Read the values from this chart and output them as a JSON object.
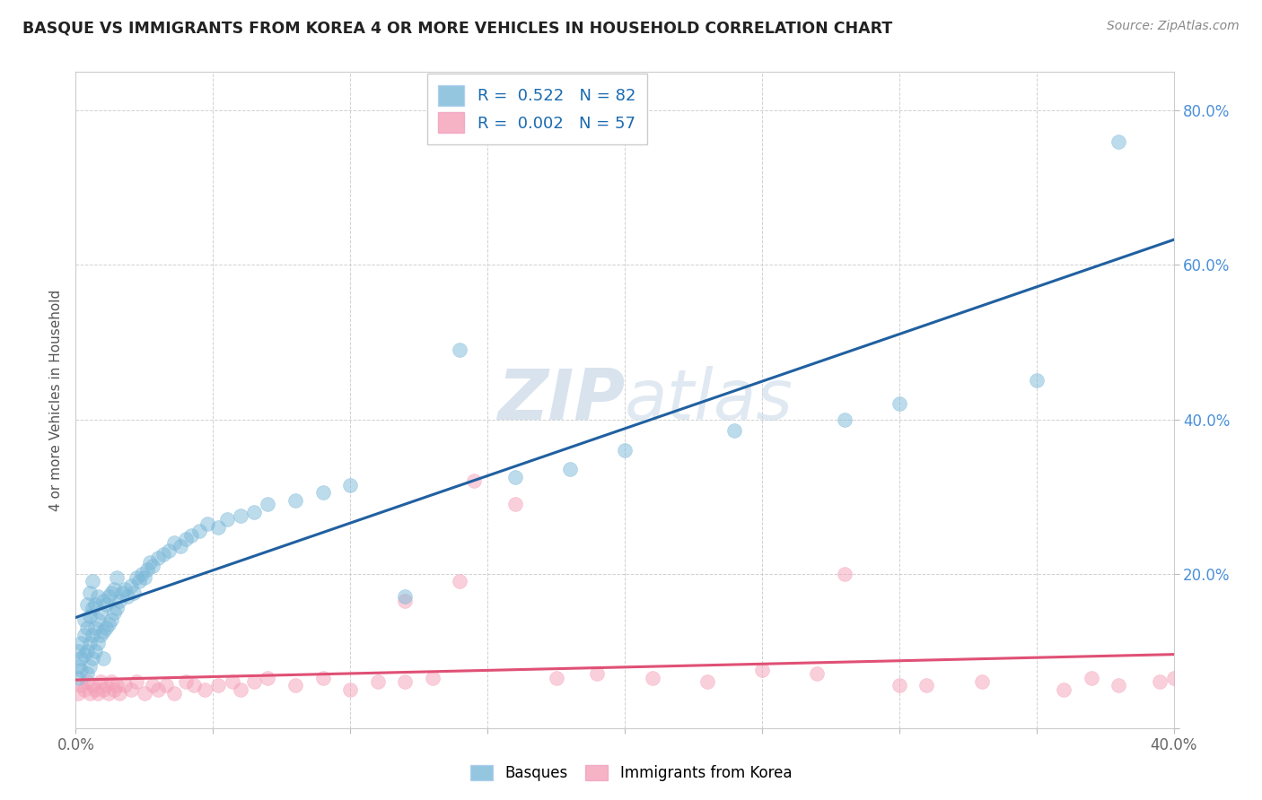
{
  "title": "BASQUE VS IMMIGRANTS FROM KOREA 4 OR MORE VEHICLES IN HOUSEHOLD CORRELATION CHART",
  "source_text": "Source: ZipAtlas.com",
  "ylabel": "4 or more Vehicles in Household",
  "xlim": [
    0.0,
    0.4
  ],
  "ylim": [
    0.0,
    0.85
  ],
  "xticks": [
    0.0,
    0.05,
    0.1,
    0.15,
    0.2,
    0.25,
    0.3,
    0.35,
    0.4
  ],
  "xticklabels": [
    "0.0%",
    "",
    "",
    "",
    "",
    "",
    "",
    "",
    "40.0%"
  ],
  "yticks": [
    0.0,
    0.2,
    0.4,
    0.6,
    0.8
  ],
  "yticklabels": [
    "",
    "20.0%",
    "40.0%",
    "60.0%",
    "80.0%"
  ],
  "basque_color": "#7ab8d9",
  "korea_color": "#f4a0b8",
  "basque_line_color": "#2060a0",
  "korea_line_color": "#e05075",
  "grid_color": "#cccccc",
  "background_color": "#ffffff",
  "watermark_color": "#c8d8e8",
  "basque_x": [
    0.001,
    0.001,
    0.001,
    0.002,
    0.002,
    0.002,
    0.003,
    0.003,
    0.003,
    0.004,
    0.004,
    0.004,
    0.004,
    0.005,
    0.005,
    0.005,
    0.005,
    0.006,
    0.006,
    0.006,
    0.006,
    0.007,
    0.007,
    0.007,
    0.008,
    0.008,
    0.008,
    0.009,
    0.009,
    0.01,
    0.01,
    0.01,
    0.011,
    0.011,
    0.012,
    0.012,
    0.013,
    0.013,
    0.014,
    0.014,
    0.015,
    0.015,
    0.016,
    0.017,
    0.018,
    0.019,
    0.02,
    0.021,
    0.022,
    0.023,
    0.024,
    0.025,
    0.026,
    0.027,
    0.028,
    0.03,
    0.032,
    0.034,
    0.036,
    0.038,
    0.04,
    0.042,
    0.045,
    0.048,
    0.052,
    0.055,
    0.06,
    0.065,
    0.07,
    0.08,
    0.09,
    0.1,
    0.12,
    0.14,
    0.16,
    0.18,
    0.2,
    0.24,
    0.28,
    0.3,
    0.35,
    0.38
  ],
  "basque_y": [
    0.065,
    0.08,
    0.1,
    0.075,
    0.09,
    0.11,
    0.095,
    0.12,
    0.14,
    0.07,
    0.1,
    0.13,
    0.16,
    0.08,
    0.11,
    0.145,
    0.175,
    0.09,
    0.12,
    0.155,
    0.19,
    0.1,
    0.13,
    0.16,
    0.11,
    0.14,
    0.17,
    0.12,
    0.15,
    0.09,
    0.125,
    0.165,
    0.13,
    0.16,
    0.135,
    0.17,
    0.14,
    0.175,
    0.15,
    0.18,
    0.155,
    0.195,
    0.165,
    0.175,
    0.18,
    0.17,
    0.185,
    0.175,
    0.195,
    0.19,
    0.2,
    0.195,
    0.205,
    0.215,
    0.21,
    0.22,
    0.225,
    0.23,
    0.24,
    0.235,
    0.245,
    0.25,
    0.255,
    0.265,
    0.26,
    0.27,
    0.275,
    0.28,
    0.29,
    0.295,
    0.305,
    0.315,
    0.17,
    0.49,
    0.325,
    0.335,
    0.36,
    0.385,
    0.4,
    0.42,
    0.45,
    0.76
  ],
  "korea_x": [
    0.001,
    0.002,
    0.003,
    0.004,
    0.005,
    0.006,
    0.007,
    0.008,
    0.009,
    0.01,
    0.011,
    0.012,
    0.013,
    0.014,
    0.015,
    0.016,
    0.018,
    0.02,
    0.022,
    0.025,
    0.028,
    0.03,
    0.033,
    0.036,
    0.04,
    0.043,
    0.047,
    0.052,
    0.057,
    0.06,
    0.065,
    0.07,
    0.08,
    0.09,
    0.1,
    0.11,
    0.12,
    0.13,
    0.145,
    0.16,
    0.175,
    0.19,
    0.21,
    0.23,
    0.25,
    0.27,
    0.3,
    0.33,
    0.36,
    0.38,
    0.395,
    0.4,
    0.12,
    0.14,
    0.28,
    0.31,
    0.37
  ],
  "korea_y": [
    0.045,
    0.055,
    0.05,
    0.06,
    0.045,
    0.055,
    0.05,
    0.045,
    0.06,
    0.05,
    0.055,
    0.045,
    0.06,
    0.05,
    0.055,
    0.045,
    0.055,
    0.05,
    0.06,
    0.045,
    0.055,
    0.05,
    0.055,
    0.045,
    0.06,
    0.055,
    0.05,
    0.055,
    0.06,
    0.05,
    0.06,
    0.065,
    0.055,
    0.065,
    0.05,
    0.06,
    0.06,
    0.065,
    0.32,
    0.29,
    0.065,
    0.07,
    0.065,
    0.06,
    0.075,
    0.07,
    0.055,
    0.06,
    0.05,
    0.055,
    0.06,
    0.065,
    0.165,
    0.19,
    0.2,
    0.055,
    0.065
  ],
  "legend_label_basque": "R =  0.522   N = 82",
  "legend_label_korea": "R =  0.002   N = 57",
  "legend_text_color": "#1a6ab0"
}
